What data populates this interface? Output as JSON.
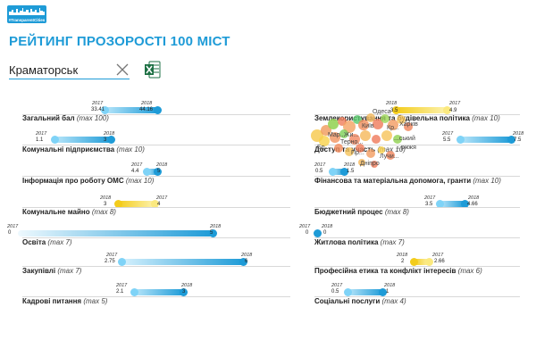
{
  "brand": {
    "logo_text": "#TransparentCities"
  },
  "page": {
    "title": "РЕЙТИНГ ПРОЗОРОСТІ 100 МІСТ"
  },
  "search": {
    "value": "Краматорськ"
  },
  "colors": {
    "blue": "#1e9bd7",
    "blue_light": "#7fd3f7",
    "yellow": "#f3cc1c",
    "yellow_light": "#fbe97f"
  },
  "categories": [
    {
      "id": "overall",
      "label": "Загальний бал",
      "max": "(max 100)",
      "y2017": "2017",
      "y2018": "2018",
      "v2017": "33.41",
      "v2018": "44.16"
    },
    {
      "id": "communal",
      "label": "Комунальні підприємства",
      "max": "(max 10)",
      "y2017": "2017",
      "y2018": "2018",
      "v2017": "1.1",
      "v2018": "3"
    },
    {
      "id": "oms",
      "label": "Інформація про роботу ОМС",
      "max": "(max 10)",
      "y2017": "2017",
      "y2018": "2018",
      "v2017": "4.4",
      "v2018": "5"
    },
    {
      "id": "property",
      "label": "Комунальне майно",
      "max": "(max 8)",
      "y2017": "2017",
      "y2018": "2018",
      "v2017": "4",
      "v2018": "3"
    },
    {
      "id": "education",
      "label": "Освіта",
      "max": "(max 7)",
      "y2017": "2017",
      "y2018": "2018",
      "v2017": "0",
      "v2018": "5"
    },
    {
      "id": "procurement",
      "label": "Закупівлі",
      "max": "(max 7)",
      "y2017": "2017",
      "y2018": "2018",
      "v2017": "2.75",
      "v2018": "6"
    },
    {
      "id": "hr",
      "label": "Кадрові питання",
      "max": "(max 5)",
      "y2017": "2017",
      "y2018": "2018",
      "v2017": "2.1",
      "v2018": "3"
    },
    {
      "id": "land",
      "label": "Землекористування та будівельна політика",
      "max": "(max 10)",
      "y2017": "2017",
      "y2018": "2018",
      "v2017": "4.9",
      "v2018": "3.5"
    },
    {
      "id": "access",
      "label": "Доступ та участь",
      "max": "(max 10)",
      "y2017": "2017",
      "y2018": "2018",
      "v2017": "5.5",
      "v2018": "7.5"
    },
    {
      "id": "finance",
      "label": "Фінансова та матеріальна допомога, гранти",
      "max": "(max 10)",
      "y2017": "2017",
      "y2018": "2018",
      "v2017": "0.5",
      "v2018": "1.5"
    },
    {
      "id": "budget",
      "label": "Бюджетний процес",
      "max": "(max 8)",
      "y2017": "2017",
      "y2018": "2018",
      "v2017": "3.5",
      "v2018": "4.66"
    },
    {
      "id": "housing",
      "label": "Житлова політика",
      "max": "(max 7)",
      "y2017": "2017",
      "y2018": "2018",
      "v2017": "0",
      "v2018": "0"
    },
    {
      "id": "ethics",
      "label": "Професійна етика та конфлікт інтересів",
      "max": "(max 6)",
      "y2017": "2017",
      "y2018": "2018",
      "v2017": "2.66",
      "v2018": "2"
    },
    {
      "id": "social",
      "label": "Соціальні послуги",
      "max": "(max 4)",
      "y2017": "2017",
      "y2018": "2018",
      "v2017": "0.5",
      "v2018": "1"
    }
  ],
  "overlay_words": [
    "Харків",
    "Київ",
    "Терно...",
    "Мар...",
    "Пр...",
    "Жи...",
    "...ський",
    "Дніпро",
    "Одеса",
    "Бр...",
    "Лучи...",
    "Кр...",
    "...ржжя"
  ]
}
